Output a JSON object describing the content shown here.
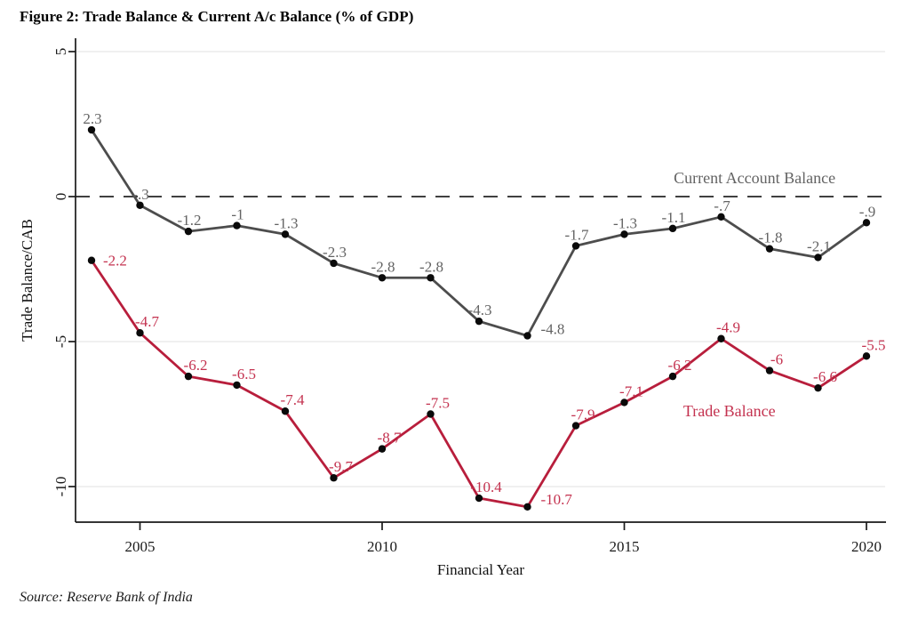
{
  "figure": {
    "title": "Figure 2: Trade Balance & Current A/c Balance (% of GDP)",
    "source": "Source: Reserve Bank of India"
  },
  "chart_data": {
    "type": "line",
    "title": "Figure 2: Trade Balance & Current A/c Balance (% of GDP)",
    "xlabel": "Financial Year",
    "ylabel": "Trade Balance/CAB",
    "x": [
      2004,
      2005,
      2006,
      2007,
      2008,
      2009,
      2010,
      2011,
      2012,
      2013,
      2014,
      2015,
      2016,
      2017,
      2018,
      2019,
      2020
    ],
    "xticks": [
      2005,
      2010,
      2015,
      2020
    ],
    "yticks": [
      5,
      0,
      -5,
      -10
    ],
    "ytick_labels": [
      "5",
      "0",
      "-5",
      "-10"
    ],
    "grid_values": [
      5,
      -5,
      -10
    ],
    "ylim": [
      -11.3,
      5.4
    ],
    "xlim": [
      2003.7,
      2020.6
    ],
    "grid": "horizontal-light",
    "legend_position": "inline-annotations",
    "zero_line": {
      "value": 0,
      "style": "dashed",
      "color": "#262626"
    },
    "axis_color": "#1a1a1a",
    "grid_color": "#e7e7e7",
    "series": [
      {
        "name": "Current Account Balance",
        "color": "#4d4d4d",
        "label_color": "#636363",
        "marker_color": "#0a0a0a",
        "values": [
          2.3,
          -0.3,
          -1.2,
          -1,
          -1.3,
          -2.3,
          -2.8,
          -2.8,
          -4.3,
          -4.8,
          -1.7,
          -1.3,
          -1.1,
          -0.7,
          -1.8,
          -2.1,
          -0.9
        ],
        "labels": [
          "2.3",
          "-.3",
          "-1.2",
          "-1",
          "-1.3",
          "-2.3",
          "-2.8",
          "-2.8",
          "-4.3",
          "-4.8",
          "-1.7",
          "-1.3",
          "-1.1",
          "-.7",
          "-1.8",
          "-2.1",
          "-.9"
        ],
        "label_default_offset": {
          "dx": 1,
          "dy": -7
        },
        "label_overrides": {
          "9": {
            "dx": 15,
            "dy": -2,
            "anchor": "start"
          }
        },
        "annotation": {
          "text": "Current Account Balance",
          "x_year": 2017.69,
          "y_value": 0.46
        }
      },
      {
        "name": "Trade Balance",
        "color": "#b81e3c",
        "label_color": "#c43350",
        "marker_color": "#0a0a0a",
        "values": [
          -2.2,
          -4.7,
          -6.2,
          -6.5,
          -7.4,
          -9.7,
          -8.7,
          -7.5,
          -10.4,
          -10.7,
          -7.9,
          -7.1,
          -6.2,
          -4.9,
          -6,
          -6.6,
          -5.5
        ],
        "labels": [
          "-2.2",
          "-4.7",
          "-6.2",
          "-6.5",
          "-7.4",
          "-9.7",
          "-8.7",
          "-7.5",
          "-10.4",
          "-10.7",
          "-7.9",
          "-7.1",
          "-6.2",
          "-4.9",
          "-6",
          "-6.6",
          "-5.5"
        ],
        "label_default_offset": {
          "dx": 8,
          "dy": -7
        },
        "label_overrides": {
          "0": {
            "dx": 13,
            "dy": 6,
            "anchor": "start"
          },
          "9": {
            "dx": 15,
            "dy": -3,
            "anchor": "start"
          }
        },
        "annotation": {
          "text": "Trade Balance",
          "x_year": 2017.17,
          "y_value": -7.58
        }
      }
    ]
  }
}
